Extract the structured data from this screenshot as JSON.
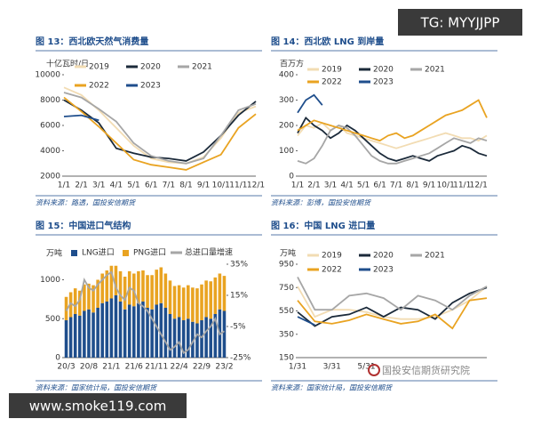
{
  "chart_data": [
    {
      "type": "line",
      "title": "图 13：西北欧天然气消费量",
      "ylabel": "十亿瓦时/日",
      "categories": [
        "1/1",
        "2/1",
        "3/1",
        "4/1",
        "5/1",
        "6/1",
        "7/1",
        "8/1",
        "9/1",
        "10/1",
        "11/1",
        "12/1"
      ],
      "ylim": [
        2000,
        10000
      ],
      "yticks": [
        2000,
        4000,
        6000,
        8000,
        10000
      ],
      "series": [
        {
          "name": "2019",
          "color": "#f2dcb3",
          "values": [
            9000,
            8400,
            7200,
            5800,
            4400,
            3400,
            3100,
            3000,
            3500,
            5000,
            7000,
            7500
          ]
        },
        {
          "name": "2020",
          "color": "#1b2a3a",
          "values": [
            8000,
            7200,
            6200,
            4200,
            3800,
            3500,
            3400,
            3200,
            3900,
            5200,
            6800,
            7900
          ]
        },
        {
          "name": "2021",
          "color": "#a6a6a6",
          "values": [
            8600,
            8200,
            7300,
            6300,
            4600,
            3600,
            3200,
            3000,
            3400,
            5200,
            7200,
            7700
          ]
        },
        {
          "name": "2022",
          "color": "#e9a321",
          "values": [
            8200,
            7100,
            5900,
            4600,
            3300,
            2900,
            2700,
            2500,
            3100,
            3700,
            5800,
            6900
          ]
        },
        {
          "name": "2023",
          "color": "#1f4e8c",
          "values": [
            6700,
            6800,
            6400,
            null,
            null,
            null,
            null,
            null,
            null,
            null,
            null,
            null
          ]
        }
      ],
      "source": "资料来源：路透，国投安信期货"
    },
    {
      "type": "line",
      "title": "图 14：西北欧 LNG 到岸量",
      "ylabel": "百万方",
      "categories": [
        "1/1",
        null,
        "2/1",
        null,
        "3/1",
        null,
        "4/1",
        null,
        "5/1",
        null,
        "6/1",
        null,
        "7/1",
        null,
        "8/1",
        null,
        "9/1",
        null,
        "10/1",
        null,
        "11/1",
        null,
        "12/1",
        null
      ],
      "ylim": [
        0,
        400
      ],
      "yticks": [
        0,
        100,
        200,
        300,
        400
      ],
      "series": [
        {
          "name": "2019",
          "color": "#f2dcb3",
          "values": [
            160,
            200,
            190,
            210,
            180,
            200,
            170,
            160,
            150,
            140,
            130,
            120,
            110,
            120,
            130,
            140,
            150,
            160,
            170,
            160,
            150,
            150,
            140,
            160
          ]
        },
        {
          "name": "2020",
          "color": "#1b2a3a",
          "values": [
            170,
            230,
            200,
            180,
            150,
            170,
            200,
            180,
            150,
            120,
            90,
            70,
            60,
            70,
            80,
            70,
            60,
            80,
            90,
            100,
            120,
            110,
            90,
            80
          ]
        },
        {
          "name": "2021",
          "color": "#a6a6a6",
          "values": [
            60,
            50,
            70,
            120,
            180,
            200,
            190,
            160,
            120,
            80,
            60,
            50,
            50,
            60,
            70,
            80,
            90,
            110,
            130,
            150,
            140,
            130,
            150,
            140
          ]
        },
        {
          "name": "2022",
          "color": "#e9a321",
          "values": [
            180,
            200,
            220,
            210,
            200,
            190,
            180,
            170,
            160,
            150,
            140,
            160,
            170,
            150,
            160,
            180,
            200,
            220,
            240,
            250,
            260,
            280,
            300,
            230
          ]
        },
        {
          "name": "2023",
          "color": "#1f4e8c",
          "values": [
            250,
            300,
            320,
            280,
            null,
            null,
            null,
            null,
            null,
            null,
            null,
            null,
            null,
            null,
            null,
            null,
            null,
            null,
            null,
            null,
            null,
            null,
            null,
            null
          ]
        }
      ],
      "source": "资料来源：彭博，国投安信期货"
    },
    {
      "type": "bar",
      "stacked": true,
      "title": "图 15：中国进口气结构",
      "ylabel": "万吨",
      "categories": [
        "20/3",
        null,
        null,
        null,
        null,
        "20/8",
        null,
        null,
        null,
        null,
        "21/1",
        null,
        null,
        null,
        null,
        "21/6",
        null,
        null,
        null,
        null,
        "21/11",
        null,
        null,
        null,
        null,
        "22/4",
        null,
        null,
        null,
        null,
        "22/9",
        null,
        null,
        null,
        null,
        "23/2"
      ],
      "ylim": [
        0,
        1200
      ],
      "yticks": [
        0,
        500,
        1000
      ],
      "y2lim": [
        -25,
        35
      ],
      "y2ticks": [
        {
          "value": -25,
          "label": "-25%"
        },
        {
          "value": -5,
          "label": "-5%"
        },
        {
          "value": 15,
          "label": "15%"
        },
        {
          "value": 35,
          "label": "35%"
        }
      ],
      "series": [
        {
          "name": "LNG进口",
          "color": "#1f4e8c",
          "values": [
            480,
            520,
            560,
            540,
            600,
            620,
            580,
            640,
            700,
            720,
            760,
            800,
            720,
            620,
            680,
            660,
            700,
            720,
            640,
            620,
            680,
            700,
            640,
            560,
            500,
            520,
            480,
            500,
            460,
            440,
            480,
            520,
            500,
            560,
            620,
            600
          ]
        },
        {
          "name": "PNG进口",
          "color": "#e9a321",
          "values": [
            300,
            320,
            330,
            320,
            340,
            330,
            350,
            360,
            380,
            400,
            420,
            380,
            390,
            420,
            430,
            420,
            410,
            400,
            420,
            440,
            450,
            460,
            440,
            430,
            420,
            410,
            420,
            430,
            440,
            450,
            460,
            470,
            480,
            470,
            460,
            450
          ]
        },
        {
          "name": "总进口量增速",
          "type": "line",
          "axis": "y2",
          "color": "#a6a6a6",
          "values": [
            5,
            10,
            8,
            12,
            25,
            20,
            18,
            22,
            25,
            28,
            30,
            20,
            15,
            12,
            20,
            18,
            10,
            8,
            5,
            0,
            -5,
            -10,
            -15,
            -20,
            -18,
            -15,
            -22,
            -20,
            -15,
            -10,
            -12,
            -8,
            -5,
            0,
            -10,
            -8
          ]
        }
      ],
      "source": "资料来源：国家统计局，国投安信期货"
    },
    {
      "type": "line",
      "title": "图 16：中国 LNG 进口量",
      "ylabel": "万吨",
      "categories": [
        "1/31",
        null,
        "3/31",
        null,
        "5/31",
        null,
        null,
        null,
        null,
        null,
        null,
        null
      ],
      "ylim": [
        150,
        950
      ],
      "yticks": [
        150,
        350,
        550,
        750,
        950
      ],
      "series": [
        {
          "name": "2019",
          "color": "#f2dcb3",
          "values": [
            760,
            500,
            560,
            560,
            540,
            500,
            480,
            480,
            500,
            560,
            640,
            760
          ]
        },
        {
          "name": "2020",
          "color": "#1b2a3a",
          "values": [
            540,
            420,
            500,
            520,
            580,
            500,
            580,
            560,
            480,
            620,
            700,
            750
          ]
        },
        {
          "name": "2021",
          "color": "#a6a6a6",
          "values": [
            840,
            560,
            560,
            680,
            700,
            660,
            560,
            680,
            640,
            560,
            680,
            760
          ]
        },
        {
          "name": "2022",
          "color": "#e9a321",
          "values": [
            640,
            460,
            440,
            470,
            520,
            480,
            440,
            460,
            520,
            400,
            640,
            660
          ]
        },
        {
          "name": "2023",
          "color": "#1f4e8c",
          "values": [
            500,
            430,
            null,
            null,
            null,
            null,
            null,
            null,
            null,
            null,
            null,
            null
          ]
        }
      ],
      "source": "资料来源：国家统计局，国投安信期货"
    }
  ],
  "watermarks": {
    "tag": "TG: MYYJJPP",
    "site": "www.smoke119.com",
    "brand": "国投安信期货研究院"
  }
}
